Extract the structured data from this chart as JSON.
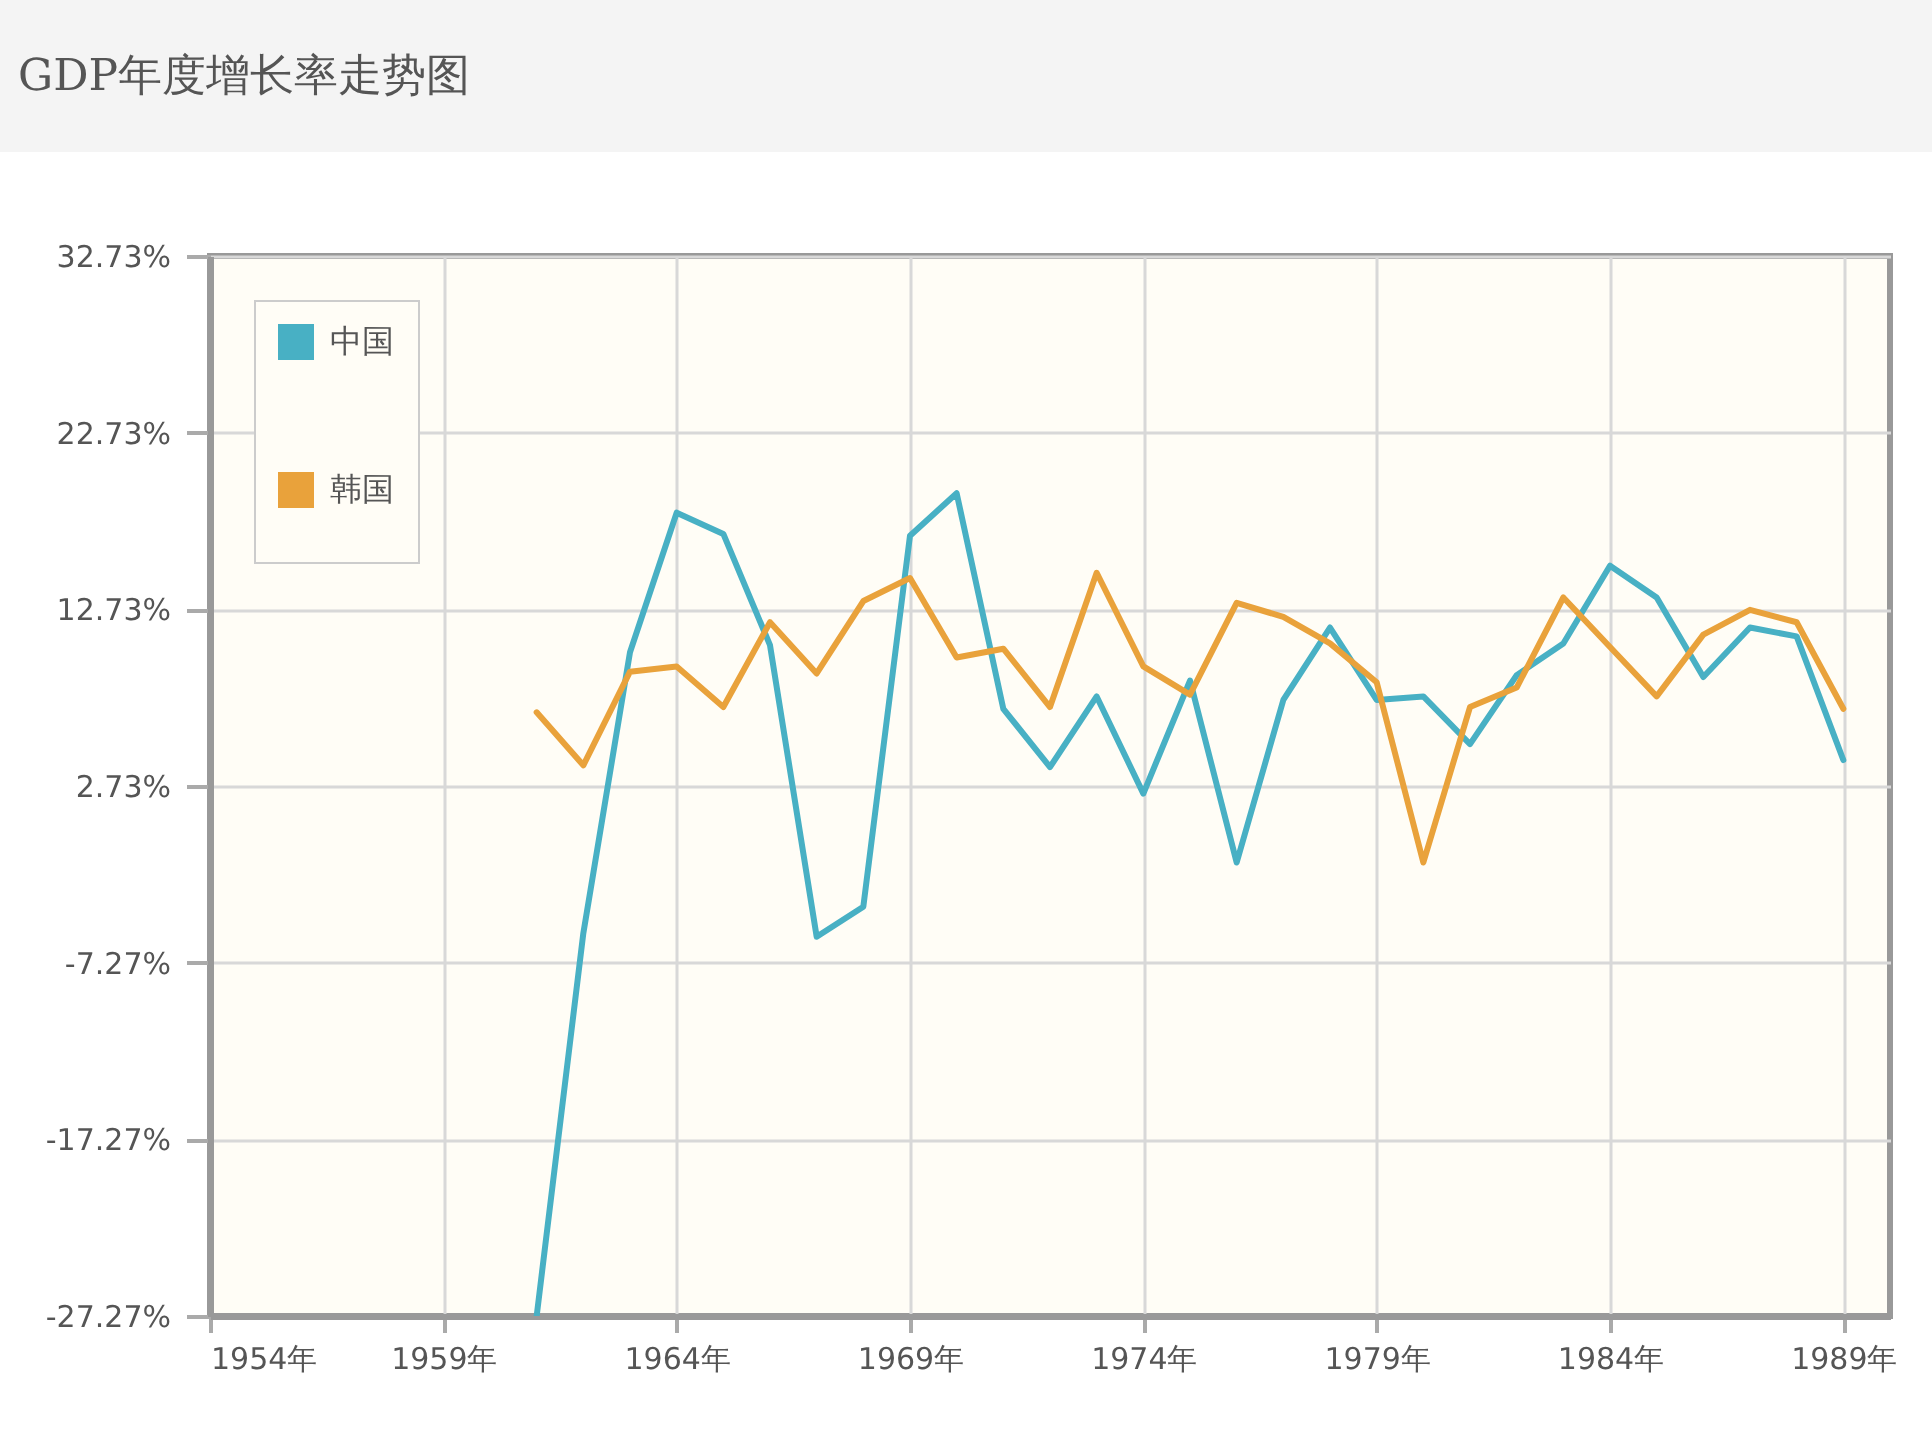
{
  "chart_data": {
    "type": "line",
    "title": "GDP年度增长率走势图",
    "x": [
      1961,
      1962,
      1963,
      1964,
      1965,
      1966,
      1967,
      1968,
      1969,
      1970,
      1971,
      1972,
      1973,
      1974,
      1975,
      1976,
      1977,
      1978,
      1979,
      1980,
      1981,
      1982,
      1983,
      1984,
      1985,
      1986,
      1987,
      1988,
      1989
    ],
    "series": [
      {
        "name": "中国",
        "color": "#48b0c4",
        "values": [
          -27.27,
          -5.6,
          10.3,
          18.2,
          17.0,
          10.7,
          -5.8,
          -4.1,
          16.9,
          19.3,
          7.1,
          3.8,
          7.8,
          2.3,
          8.7,
          -1.6,
          7.6,
          11.7,
          7.6,
          7.8,
          5.1,
          9.0,
          10.8,
          15.2,
          13.4,
          8.9,
          11.7,
          11.2,
          4.2
        ]
      },
      {
        "name": "韩国",
        "color": "#e9a23b",
        "values": [
          6.9,
          3.9,
          9.2,
          9.5,
          7.2,
          12.0,
          9.1,
          13.2,
          14.5,
          10.0,
          10.5,
          7.2,
          14.8,
          9.5,
          7.9,
          13.1,
          12.3,
          10.8,
          8.6,
          -1.6,
          7.2,
          8.3,
          13.4,
          10.6,
          7.8,
          11.3,
          12.7,
          12.0,
          7.1
        ]
      }
    ],
    "xlim": [
      1954,
      1990
    ],
    "xticks": [
      {
        "value": 1954,
        "label": "1954年"
      },
      {
        "value": 1959,
        "label": "1959年"
      },
      {
        "value": 1964,
        "label": "1964年"
      },
      {
        "value": 1969,
        "label": "1969年"
      },
      {
        "value": 1974,
        "label": "1974年"
      },
      {
        "value": 1979,
        "label": "1979年"
      },
      {
        "value": 1984,
        "label": "1984年"
      },
      {
        "value": 1989,
        "label": "1989年"
      }
    ],
    "ylim": [
      -27.27,
      32.73
    ],
    "yticks": [
      {
        "value": -27.27,
        "label": "-27.27%"
      },
      {
        "value": -17.27,
        "label": "-17.27%"
      },
      {
        "value": -7.27,
        "label": "-7.27%"
      },
      {
        "value": 2.73,
        "label": "2.73%"
      },
      {
        "value": 12.73,
        "label": "12.73%"
      },
      {
        "value": 22.73,
        "label": "22.73%"
      },
      {
        "value": 32.73,
        "label": "32.73%"
      }
    ],
    "grid": true,
    "legend": "top left",
    "line_style": "solid"
  }
}
